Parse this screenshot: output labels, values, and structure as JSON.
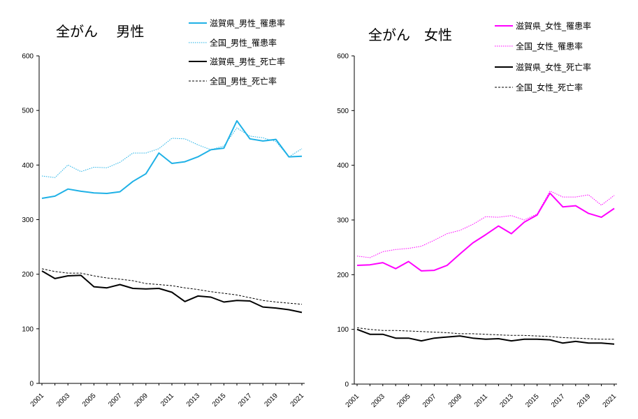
{
  "chart_data": [
    {
      "type": "line",
      "title": "全がん　 男性",
      "ylim": [
        0,
        600
      ],
      "y_ticks": [
        "0",
        "100",
        "200",
        "300",
        "400",
        "500",
        "600"
      ],
      "x": [
        2001,
        2002,
        2003,
        2004,
        2005,
        2006,
        2007,
        2008,
        2009,
        2010,
        2011,
        2012,
        2013,
        2014,
        2015,
        2016,
        2017,
        2018,
        2019,
        2020,
        2021
      ],
      "x_tick_labels": [
        "2001",
        "2003",
        "2005",
        "2007",
        "2009",
        "2011",
        "2013",
        "2015",
        "2017",
        "2019",
        "2021"
      ],
      "grid": false,
      "legend_position": "top-right",
      "series": [
        {
          "name": "滋賀県_男性_罹患率",
          "color": "#1FB1E6",
          "style": "solid",
          "width": 2,
          "values": [
            339,
            343,
            356,
            352,
            349,
            348,
            351,
            370,
            384,
            422,
            403,
            406,
            415,
            428,
            431,
            481,
            448,
            444,
            447,
            415,
            416
          ]
        },
        {
          "name": "全国_男性_罹患率",
          "color": "#1FB1E6",
          "style": "dotted",
          "width": 1,
          "values": [
            380,
            377,
            400,
            388,
            396,
            395,
            405,
            422,
            422,
            430,
            449,
            448,
            437,
            428,
            435,
            468,
            453,
            450,
            443,
            415,
            430
          ]
        },
        {
          "name": "滋賀県_男性_死亡率",
          "color": "#000000",
          "style": "solid",
          "width": 2,
          "values": [
            206,
            192,
            197,
            198,
            177,
            175,
            181,
            174,
            173,
            174,
            167,
            150,
            160,
            158,
            149,
            152,
            151,
            140,
            138,
            135,
            130
          ]
        },
        {
          "name": "全国_男性_死亡率",
          "color": "#000000",
          "style": "dashed",
          "width": 1,
          "values": [
            210,
            205,
            202,
            202,
            197,
            193,
            191,
            188,
            183,
            181,
            179,
            175,
            172,
            168,
            165,
            162,
            157,
            152,
            149,
            147,
            145
          ]
        }
      ]
    },
    {
      "type": "line",
      "title": "全がん　女性",
      "ylim": [
        0,
        600
      ],
      "y_ticks": [
        "0",
        "100",
        "200",
        "300",
        "400",
        "500",
        "600"
      ],
      "x": [
        2001,
        2002,
        2003,
        2004,
        2005,
        2006,
        2007,
        2008,
        2009,
        2010,
        2011,
        2012,
        2013,
        2014,
        2015,
        2016,
        2017,
        2018,
        2019,
        2020,
        2021
      ],
      "x_tick_labels": [
        "2001",
        "2003",
        "2005",
        "2007",
        "2009",
        "2011",
        "2013",
        "2015",
        "2017",
        "2019",
        "2021"
      ],
      "grid": false,
      "legend_position": "top-right",
      "series": [
        {
          "name": "滋賀県_女性_罹患率",
          "color": "#FF00FF",
          "style": "solid",
          "width": 2,
          "values": [
            217,
            218,
            222,
            211,
            224,
            207,
            208,
            217,
            238,
            258,
            273,
            289,
            275,
            296,
            309,
            349,
            324,
            326,
            312,
            305,
            321
          ]
        },
        {
          "name": "全国_女性_罹患率",
          "color": "#FF00FF",
          "style": "dotted",
          "width": 1,
          "values": [
            234,
            231,
            242,
            246,
            248,
            252,
            263,
            275,
            281,
            292,
            306,
            305,
            308,
            300,
            311,
            353,
            342,
            342,
            346,
            327,
            345
          ]
        },
        {
          "name": "滋賀県_女性_死亡率",
          "color": "#000000",
          "style": "solid",
          "width": 2,
          "values": [
            100,
            91,
            91,
            84,
            84,
            79,
            84,
            86,
            88,
            84,
            82,
            83,
            79,
            82,
            82,
            81,
            75,
            78,
            75,
            75,
            73
          ]
        },
        {
          "name": "全国_女性_死亡率",
          "color": "#000000",
          "style": "dashed",
          "width": 1,
          "values": [
            103,
            100,
            98,
            98,
            97,
            96,
            95,
            94,
            92,
            92,
            91,
            90,
            89,
            89,
            88,
            87,
            85,
            84,
            83,
            82,
            82
          ]
        }
      ]
    }
  ]
}
